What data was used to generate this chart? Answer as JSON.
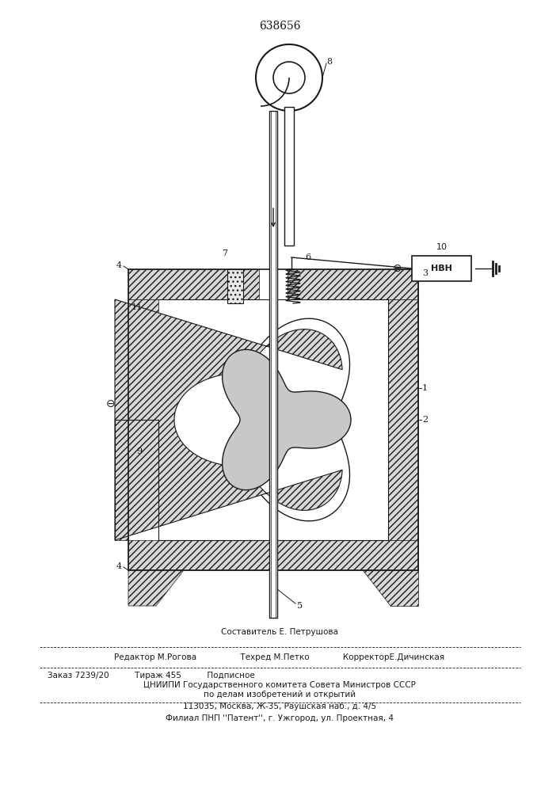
{
  "patent_number": "638656",
  "bg_color": "#ffffff",
  "line_color": "#1a1a1a",
  "footer_lines": [
    "Составитель Е. Петрушова",
    "Редактор М.Рогова                 Техред М.Петко             КорректорЕ.Дичинская",
    "Заказ 7239/20          Тираж 455          Подписное",
    "ЦНИИПИ Государственного комитета Совета Министров СССР",
    "по делам изобретений и открытий",
    "113035, Москва, Ж-35, Раушская наб., д. 4/5",
    "Филиал ПНП ''Патент'', г. Ужгород, ул. Проектная, 4"
  ]
}
